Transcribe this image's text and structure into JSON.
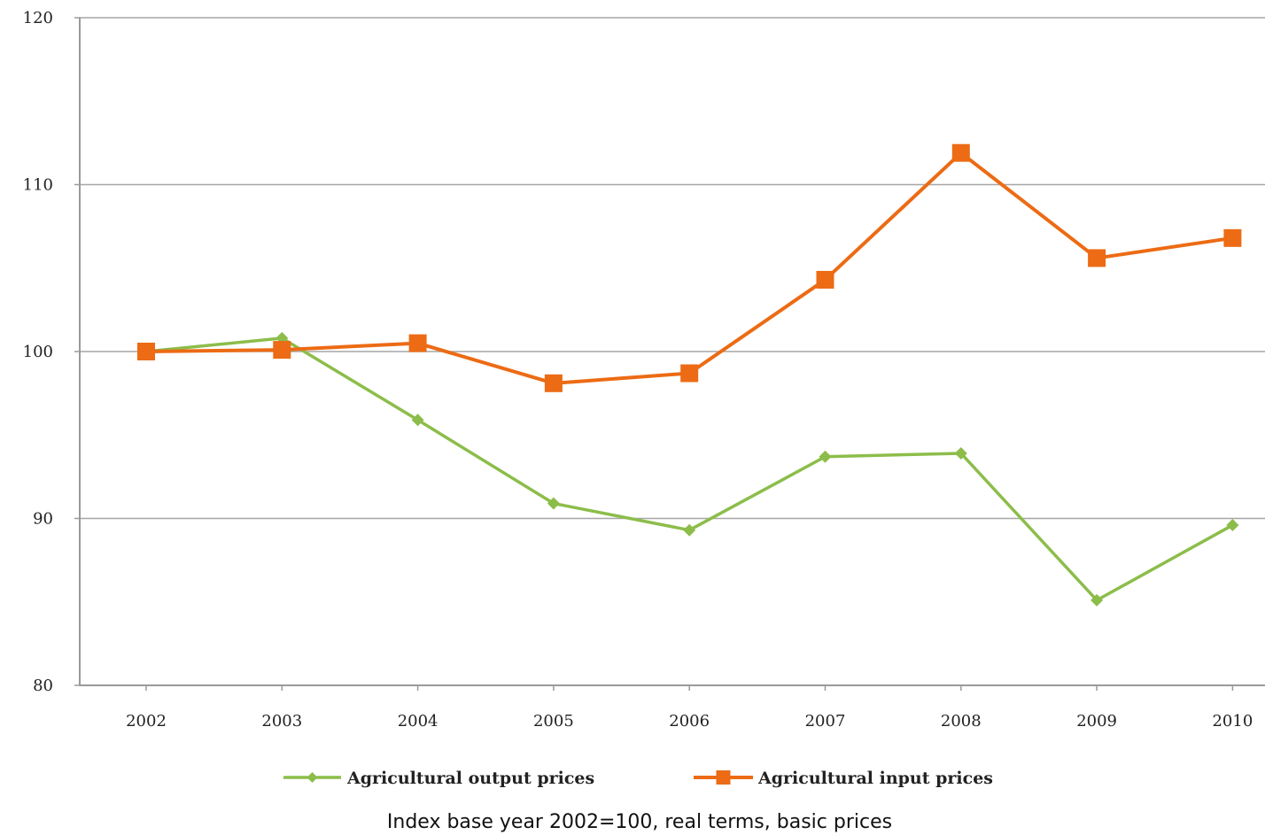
{
  "chart_data": {
    "type": "line",
    "categories": [
      "2002",
      "2003",
      "2004",
      "2005",
      "2006",
      "2007",
      "2008",
      "2009",
      "2010"
    ],
    "ylim": [
      80,
      120
    ],
    "yticks": [
      80,
      90,
      100,
      110,
      120
    ],
    "grid": true,
    "legend_position": "bottom",
    "series": [
      {
        "name": "Agricultural output prices",
        "color": "#8cbd4a",
        "marker": "diamond",
        "values": [
          100,
          100.8,
          95.9,
          90.9,
          89.3,
          93.7,
          93.9,
          85.1,
          89.6
        ]
      },
      {
        "name": "Agricultural input prices",
        "color": "#ec6b14",
        "marker": "square",
        "values": [
          100,
          100.1,
          100.5,
          98.1,
          98.7,
          104.3,
          111.9,
          105.6,
          106.8
        ]
      }
    ],
    "caption": "Index base year 2002=100, real terms, basic prices"
  }
}
